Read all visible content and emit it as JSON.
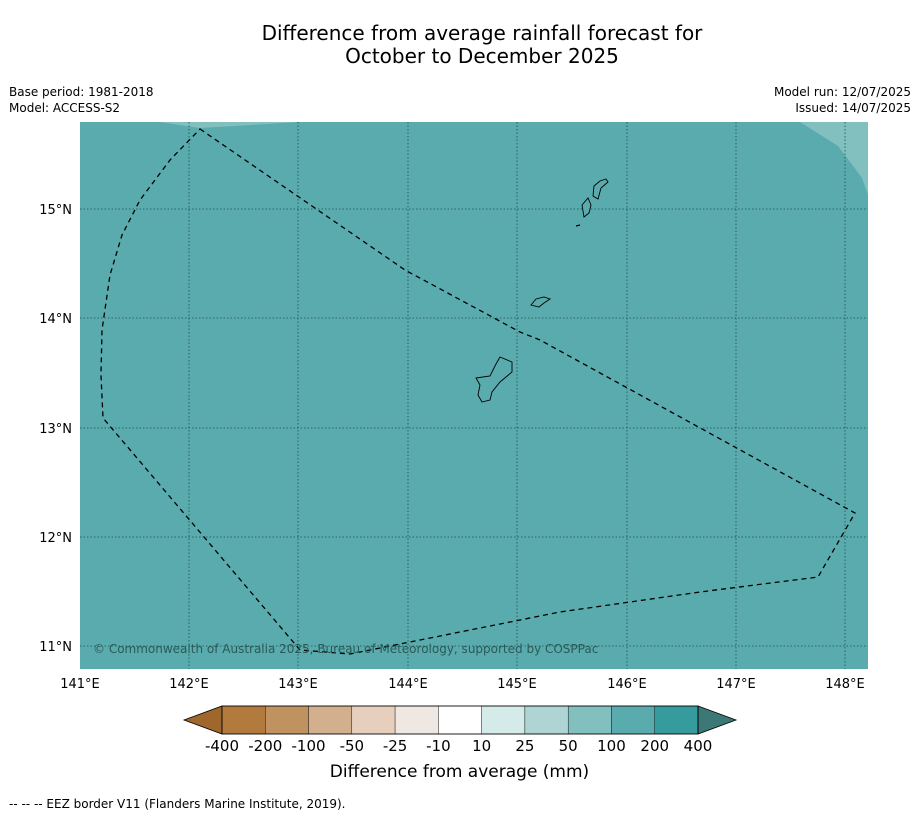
{
  "title_line1": "Difference from average rainfall forecast for",
  "title_line2": "October to December 2025",
  "meta_left": {
    "base_period": "Base period: 1981-2018",
    "model": "Model: ACCESS-S2"
  },
  "meta_right": {
    "model_run": "Model run: 12/07/2025",
    "issued": "Issued: 14/07/2025"
  },
  "map": {
    "lon_labels": [
      "141°E",
      "142°E",
      "143°E",
      "144°E",
      "145°E",
      "146°E",
      "147°E",
      "148°E"
    ],
    "lat_labels": [
      "15°N",
      "14°N",
      "13°N",
      "12°N",
      "11°N"
    ],
    "copyright": "© Commonwealth of Australia 2025, Bureau of Meteorology, supported by COSPPac",
    "base_color": "#5aabad",
    "high_color": "#82bfbf"
  },
  "colorbar": {
    "labels": [
      "-400",
      "-200",
      "-100",
      "-50",
      "-25",
      "-10",
      "10",
      "25",
      "50",
      "100",
      "200",
      "400"
    ],
    "colors": [
      "#a0672c",
      "#b37a3e",
      "#c0925f",
      "#d3b08d",
      "#e6cfbc",
      "#efe8e2",
      "#ffffff",
      "#d5ebe9",
      "#aed5d4",
      "#82bfbf",
      "#5aabad",
      "#369b9c",
      "#3b7876"
    ],
    "title": "Difference from average (mm)"
  },
  "footnote": "--  --  -- EEZ border V11 (Flanders Marine Institute, 2019)."
}
